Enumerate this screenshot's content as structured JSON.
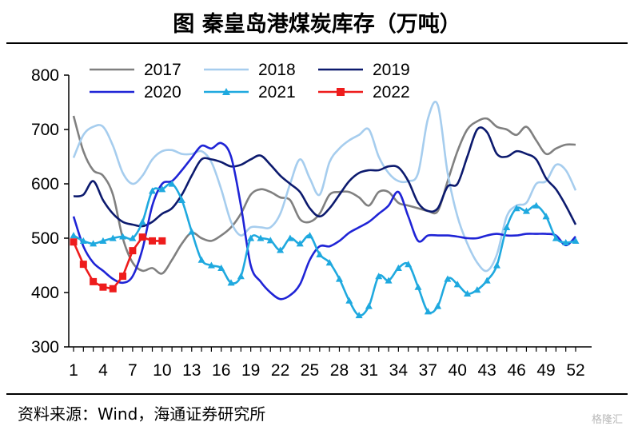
{
  "header": {
    "title": "图  秦皇岛港煤炭库存（万吨）"
  },
  "footer": {
    "source": "资料来源：Wind，海通证券研究所",
    "watermark": "格隆汇"
  },
  "chart_data": {
    "type": "line",
    "title": "图  秦皇岛港煤炭库存（万吨）",
    "xlabel": "",
    "ylabel": "",
    "xlim": [
      1,
      52
    ],
    "ylim": [
      300,
      800
    ],
    "yticks": [
      300,
      400,
      500,
      600,
      700,
      800
    ],
    "xticks": [
      1,
      4,
      7,
      10,
      13,
      16,
      19,
      22,
      25,
      28,
      31,
      34,
      37,
      40,
      43,
      46,
      49,
      52
    ],
    "grid": false,
    "legend": "top",
    "series": [
      {
        "name": "2017",
        "color": "#808080",
        "marker": "none",
        "x": [
          1,
          2,
          3,
          4,
          5,
          6,
          7,
          8,
          9,
          10,
          11,
          12,
          13,
          14,
          15,
          16,
          17,
          18,
          19,
          20,
          21,
          22,
          23,
          24,
          25,
          26,
          27,
          28,
          29,
          30,
          31,
          32,
          33,
          34,
          35,
          36,
          37,
          38,
          39,
          40,
          41,
          42,
          43,
          44,
          45,
          46,
          47,
          48,
          49,
          50,
          51,
          52
        ],
        "y": [
          725,
          660,
          625,
          615,
          580,
          500,
          455,
          440,
          445,
          435,
          460,
          490,
          510,
          500,
          495,
          505,
          520,
          545,
          580,
          590,
          585,
          575,
          570,
          535,
          530,
          545,
          580,
          585,
          585,
          575,
          560,
          585,
          585,
          565,
          560,
          555,
          550,
          550,
          605,
          660,
          700,
          715,
          720,
          705,
          700,
          690,
          705,
          680,
          655,
          665,
          672,
          672
        ]
      },
      {
        "name": "2018",
        "color": "#a6cdee",
        "marker": "none",
        "x": [
          1,
          2,
          3,
          4,
          5,
          6,
          7,
          8,
          9,
          10,
          11,
          12,
          13,
          14,
          15,
          16,
          17,
          18,
          19,
          20,
          21,
          22,
          23,
          24,
          25,
          26,
          27,
          28,
          29,
          30,
          31,
          32,
          33,
          34,
          35,
          36,
          37,
          38,
          39,
          40,
          41,
          42,
          43,
          44,
          45,
          46,
          47,
          48,
          49,
          50,
          51,
          52
        ],
        "y": [
          648,
          690,
          705,
          705,
          670,
          620,
          600,
          615,
          645,
          660,
          662,
          655,
          655,
          660,
          640,
          590,
          530,
          505,
          520,
          520,
          520,
          545,
          600,
          645,
          610,
          580,
          640,
          665,
          680,
          690,
          700,
          650,
          620,
          605,
          605,
          620,
          720,
          745,
          620,
          540,
          490,
          455,
          440,
          470,
          540,
          560,
          565,
          600,
          605,
          635,
          625,
          588
        ]
      },
      {
        "name": "2019",
        "color": "#0c1a6e",
        "marker": "none",
        "x": [
          1,
          2,
          3,
          4,
          5,
          6,
          7,
          8,
          9,
          10,
          11,
          12,
          13,
          14,
          15,
          16,
          17,
          18,
          19,
          20,
          21,
          22,
          23,
          24,
          25,
          26,
          27,
          28,
          29,
          30,
          31,
          32,
          33,
          34,
          35,
          36,
          37,
          38,
          39,
          40,
          41,
          42,
          43,
          44,
          45,
          46,
          47,
          48,
          49,
          50,
          51,
          52
        ],
        "y": [
          577,
          580,
          605,
          570,
          545,
          530,
          525,
          522,
          530,
          545,
          555,
          580,
          615,
          645,
          645,
          640,
          632,
          635,
          645,
          652,
          635,
          615,
          600,
          585,
          555,
          540,
          555,
          580,
          605,
          620,
          625,
          625,
          632,
          630,
          605,
          565,
          550,
          555,
          595,
          600,
          650,
          700,
          695,
          655,
          650,
          660,
          655,
          645,
          610,
          590,
          560,
          525
        ]
      },
      {
        "name": "2020",
        "color": "#1f24d6",
        "marker": "none",
        "x": [
          1,
          2,
          3,
          4,
          5,
          6,
          7,
          8,
          9,
          10,
          11,
          12,
          13,
          14,
          15,
          16,
          17,
          18,
          19,
          20,
          21,
          22,
          23,
          24,
          25,
          26,
          27,
          28,
          29,
          30,
          31,
          32,
          33,
          34,
          35,
          36,
          37,
          38,
          39,
          40,
          41,
          42,
          43,
          44,
          45,
          46,
          47,
          48,
          49,
          50,
          51,
          52
        ],
        "y": [
          540,
          485,
          455,
          440,
          425,
          418,
          430,
          480,
          560,
          600,
          605,
          625,
          648,
          670,
          665,
          675,
          650,
          560,
          450,
          420,
          400,
          388,
          395,
          415,
          460,
          485,
          485,
          495,
          510,
          520,
          530,
          545,
          560,
          585,
          540,
          495,
          505,
          505,
          505,
          503,
          500,
          500,
          505,
          508,
          505,
          505,
          508,
          508,
          508,
          505,
          487,
          503
        ]
      },
      {
        "name": "2021",
        "color": "#1fa9df",
        "marker": "triangle",
        "x": [
          1,
          2,
          3,
          4,
          5,
          6,
          7,
          8,
          9,
          10,
          11,
          12,
          13,
          14,
          15,
          16,
          17,
          18,
          19,
          20,
          21,
          22,
          23,
          24,
          25,
          26,
          27,
          28,
          29,
          30,
          31,
          32,
          33,
          34,
          35,
          36,
          37,
          38,
          39,
          40,
          41,
          42,
          43,
          44,
          45,
          46,
          47,
          48,
          49,
          50,
          51,
          52
        ],
        "y": [
          505,
          495,
          490,
          495,
          500,
          503,
          500,
          530,
          587,
          590,
          600,
          570,
          512,
          460,
          450,
          445,
          418,
          430,
          500,
          500,
          496,
          478,
          500,
          490,
          505,
          470,
          455,
          425,
          385,
          358,
          375,
          430,
          422,
          445,
          452,
          410,
          365,
          375,
          425,
          415,
          398,
          405,
          422,
          450,
          520,
          555,
          550,
          560,
          540,
          500,
          492,
          495
        ]
      },
      {
        "name": "2022",
        "color": "#ee1c1c",
        "marker": "square",
        "x": [
          1,
          2,
          3,
          4,
          5,
          6,
          7,
          8,
          9,
          10
        ],
        "y": [
          493,
          452,
          420,
          410,
          407,
          430,
          477,
          502,
          495,
          495
        ]
      }
    ]
  }
}
